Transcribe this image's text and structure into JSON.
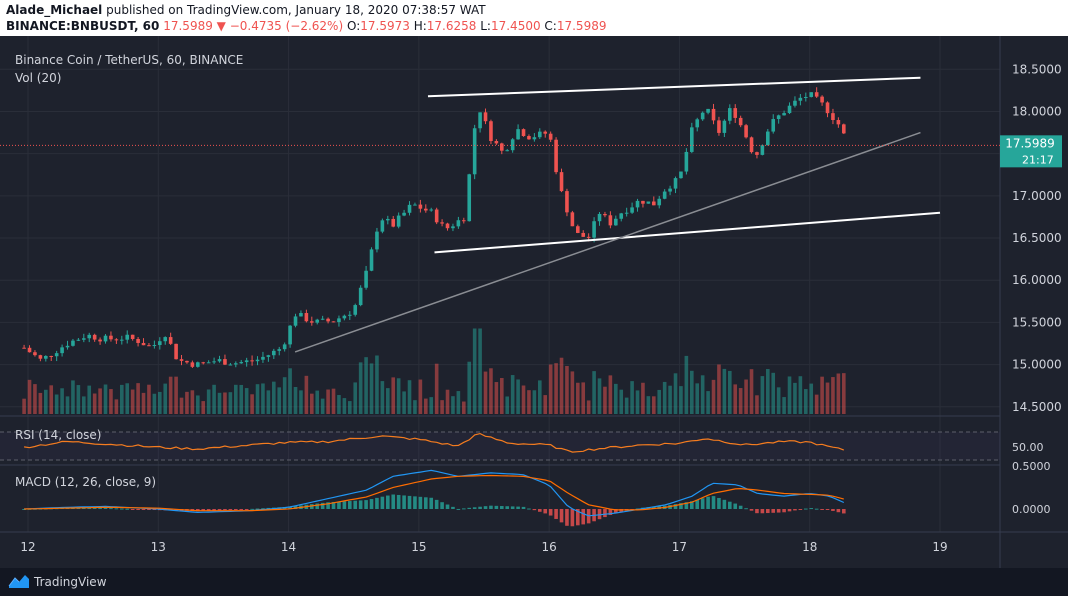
{
  "header": {
    "line1": {
      "user": "Alade_Michael",
      "text": " published on TradingView.com, January 18, 2020 07:38:57 WAT"
    },
    "line2": {
      "symbol": "BINANCE:BNBUSDT, 60",
      "price": "17.5989",
      "arrow": "▼",
      "change": "−0.4735 (−2.62%)",
      "o_label": "O:",
      "o": "17.5973",
      "h_label": "H:",
      "h": "17.6258",
      "l_label": "L:",
      "l": "17.4500",
      "c_label": "C:",
      "c": "17.5989"
    }
  },
  "legend": {
    "title": "Binance Coin / TetherUS, 60, BINANCE",
    "vol": "Vol (20)"
  },
  "price_badge": {
    "value": "17.5989",
    "countdown": "21:17"
  },
  "footer": {
    "brand": "TradingView"
  },
  "colors": {
    "up": "#26a69a",
    "down": "#ef5350",
    "background": "#1e222d",
    "rsi": "#f57c1f",
    "macd": "#2196f3",
    "signal": "#ff6d00"
  },
  "chart_data": {
    "type": "candlestick",
    "title": "Binance Coin / TetherUS, 60, BINANCE",
    "x_ticks": [
      "12",
      "13",
      "14",
      "15",
      "16",
      "17",
      "18",
      "19"
    ],
    "y_ticks": [
      "18.5000",
      "18.0000",
      "17.5000",
      "17.0000",
      "16.5000",
      "16.0000",
      "15.5000",
      "15.0000",
      "14.5000"
    ],
    "ylim": [
      14.45,
      18.8
    ],
    "xlim": [
      11.97,
      19.45
    ],
    "last_price": 17.5989,
    "close_path": [
      [
        11.97,
        15.2
      ],
      [
        12.1,
        15.05
      ],
      [
        12.3,
        15.25
      ],
      [
        12.45,
        15.35
      ],
      [
        12.6,
        15.3
      ],
      [
        12.75,
        15.32
      ],
      [
        12.85,
        15.28
      ],
      [
        12.95,
        15.2
      ],
      [
        13.05,
        15.38
      ],
      [
        13.15,
        15.05
      ],
      [
        13.3,
        15.0
      ],
      [
        13.45,
        15.05
      ],
      [
        13.6,
        15.02
      ],
      [
        13.75,
        15.05
      ],
      [
        13.85,
        15.12
      ],
      [
        13.95,
        15.2
      ],
      [
        14.05,
        15.6
      ],
      [
        14.2,
        15.5
      ],
      [
        14.35,
        15.52
      ],
      [
        14.5,
        15.65
      ],
      [
        14.6,
        16.1
      ],
      [
        14.7,
        16.75
      ],
      [
        14.8,
        16.65
      ],
      [
        14.95,
        16.9
      ],
      [
        15.1,
        16.8
      ],
      [
        15.2,
        16.6
      ],
      [
        15.35,
        16.75
      ],
      [
        15.45,
        18.1
      ],
      [
        15.55,
        17.7
      ],
      [
        15.65,
        17.5
      ],
      [
        15.75,
        17.8
      ],
      [
        15.85,
        17.7
      ],
      [
        16.0,
        17.75
      ],
      [
        16.08,
        17.1
      ],
      [
        16.2,
        16.55
      ],
      [
        16.3,
        16.5
      ],
      [
        16.4,
        16.85
      ],
      [
        16.45,
        16.65
      ],
      [
        16.55,
        16.8
      ],
      [
        16.7,
        16.95
      ],
      [
        16.8,
        16.9
      ],
      [
        16.9,
        17.1
      ],
      [
        17.0,
        17.2
      ],
      [
        17.1,
        17.8
      ],
      [
        17.2,
        18.05
      ],
      [
        17.3,
        17.75
      ],
      [
        17.4,
        18.05
      ],
      [
        17.5,
        17.75
      ],
      [
        17.58,
        17.45
      ],
      [
        17.7,
        17.85
      ],
      [
        17.8,
        18.0
      ],
      [
        17.92,
        18.15
      ],
      [
        18.0,
        18.2
      ],
      [
        18.12,
        18.05
      ],
      [
        18.22,
        17.85
      ],
      [
        18.3,
        17.6
      ]
    ],
    "channel_lines": [
      {
        "from": [
          15.07,
          18.18
        ],
        "to": [
          18.85,
          18.4
        ]
      },
      {
        "from": [
          15.12,
          16.33
        ],
        "to": [
          19.0,
          16.8
        ]
      },
      {
        "from": [
          14.05,
          15.15
        ],
        "to": [
          18.85,
          17.75
        ]
      }
    ],
    "rsi": {
      "label": "RSI (14, close)",
      "level": "50.00",
      "path": [
        [
          11.97,
          48
        ],
        [
          12.3,
          58
        ],
        [
          12.6,
          54
        ],
        [
          13.0,
          48
        ],
        [
          13.3,
          45
        ],
        [
          13.6,
          50
        ],
        [
          13.95,
          56
        ],
        [
          14.3,
          58
        ],
        [
          14.7,
          68
        ],
        [
          15.0,
          62
        ],
        [
          15.3,
          50
        ],
        [
          15.45,
          72
        ],
        [
          15.7,
          55
        ],
        [
          16.0,
          52
        ],
        [
          16.15,
          40
        ],
        [
          16.4,
          46
        ],
        [
          16.7,
          52
        ],
        [
          17.0,
          55
        ],
        [
          17.2,
          64
        ],
        [
          17.5,
          52
        ],
        [
          17.8,
          58
        ],
        [
          18.0,
          57
        ],
        [
          18.2,
          46
        ],
        [
          18.3,
          42
        ]
      ]
    },
    "macd": {
      "label": "MACD (12, 26, close, 9)",
      "y_ticks": [
        "0.5000",
        "0.0000"
      ],
      "macd_path": [
        [
          11.97,
          0.0
        ],
        [
          12.3,
          0.02
        ],
        [
          12.6,
          0.03
        ],
        [
          13.0,
          0.0
        ],
        [
          13.3,
          -0.04
        ],
        [
          13.7,
          -0.02
        ],
        [
          14.0,
          0.02
        ],
        [
          14.3,
          0.12
        ],
        [
          14.6,
          0.22
        ],
        [
          14.8,
          0.38
        ],
        [
          15.1,
          0.45
        ],
        [
          15.3,
          0.38
        ],
        [
          15.55,
          0.42
        ],
        [
          15.8,
          0.4
        ],
        [
          16.0,
          0.28
        ],
        [
          16.15,
          0.02
        ],
        [
          16.3,
          -0.08
        ],
        [
          16.5,
          -0.05
        ],
        [
          16.7,
          0.0
        ],
        [
          16.9,
          0.05
        ],
        [
          17.1,
          0.15
        ],
        [
          17.25,
          0.3
        ],
        [
          17.45,
          0.28
        ],
        [
          17.6,
          0.18
        ],
        [
          17.8,
          0.15
        ],
        [
          18.0,
          0.18
        ],
        [
          18.15,
          0.15
        ],
        [
          18.3,
          0.05
        ]
      ],
      "signal_path": [
        [
          11.97,
          0.0
        ],
        [
          12.3,
          0.01
        ],
        [
          12.6,
          0.02
        ],
        [
          13.0,
          0.01
        ],
        [
          13.3,
          -0.02
        ],
        [
          13.7,
          -0.02
        ],
        [
          14.0,
          0.0
        ],
        [
          14.3,
          0.06
        ],
        [
          14.6,
          0.14
        ],
        [
          14.8,
          0.25
        ],
        [
          15.1,
          0.35
        ],
        [
          15.3,
          0.38
        ],
        [
          15.55,
          0.39
        ],
        [
          15.8,
          0.38
        ],
        [
          16.0,
          0.33
        ],
        [
          16.15,
          0.18
        ],
        [
          16.3,
          0.05
        ],
        [
          16.5,
          -0.01
        ],
        [
          16.7,
          -0.01
        ],
        [
          16.9,
          0.02
        ],
        [
          17.1,
          0.08
        ],
        [
          17.25,
          0.18
        ],
        [
          17.45,
          0.24
        ],
        [
          17.6,
          0.22
        ],
        [
          17.8,
          0.18
        ],
        [
          18.0,
          0.17
        ],
        [
          18.15,
          0.16
        ],
        [
          18.3,
          0.1
        ]
      ]
    },
    "volume": {
      "spikes": [
        [
          15.45,
          0.95
        ],
        [
          16.0,
          0.55
        ],
        [
          17.1,
          0.48
        ],
        [
          17.3,
          0.55
        ],
        [
          17.92,
          0.42
        ],
        [
          18.22,
          0.45
        ]
      ]
    }
  }
}
